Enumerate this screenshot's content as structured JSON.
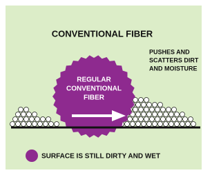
{
  "title": "CONVENTIONAL FIBER",
  "note": [
    "PUSHES AND",
    "SCATTERS DIRT",
    "AND MOISTURE"
  ],
  "fiber_label": [
    "REGULAR",
    "CONVENTIONAL",
    "FIBER"
  ],
  "legend": "SURFACE IS STILL DIRTY AND WET"
}
